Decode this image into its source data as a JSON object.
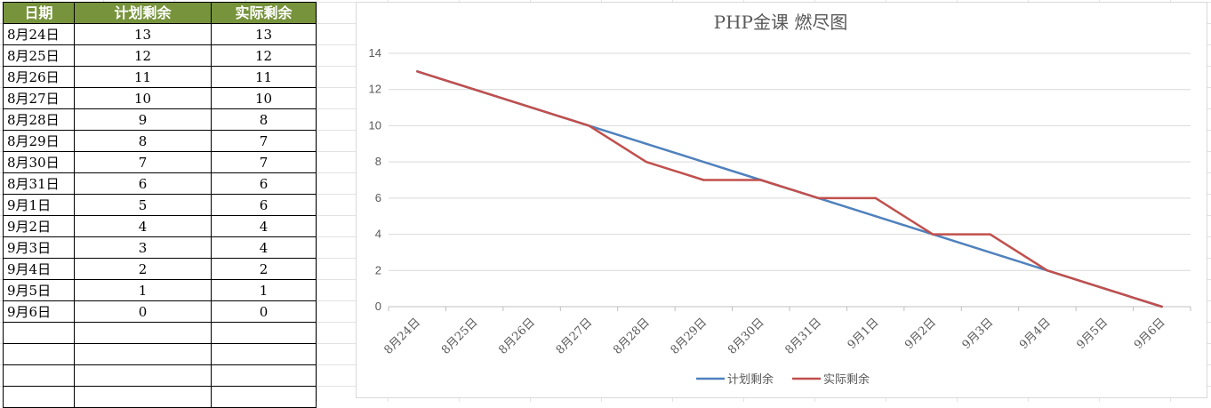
{
  "table": {
    "headers": [
      "日期",
      "计划剩余",
      "实际剩余"
    ],
    "rows": [
      [
        "8月24日",
        "13",
        "13"
      ],
      [
        "8月25日",
        "12",
        "12"
      ],
      [
        "8月26日",
        "11",
        "11"
      ],
      [
        "8月27日",
        "10",
        "10"
      ],
      [
        "8月28日",
        "9",
        "8"
      ],
      [
        "8月29日",
        "8",
        "7"
      ],
      [
        "8月30日",
        "7",
        "7"
      ],
      [
        "8月31日",
        "6",
        "6"
      ],
      [
        "9月1日",
        "5",
        "6"
      ],
      [
        "9月2日",
        "4",
        "4"
      ],
      [
        "9月3日",
        "3",
        "4"
      ],
      [
        "9月4日",
        "2",
        "2"
      ],
      [
        "9月5日",
        "1",
        "1"
      ],
      [
        "9月6日",
        "0",
        "0"
      ]
    ],
    "blank_rows": 4
  },
  "chart_data": {
    "type": "line",
    "title": "PHP金课  燃尽图",
    "categories": [
      "8月24日",
      "8月25日",
      "8月26日",
      "8月27日",
      "8月28日",
      "8月29日",
      "8月30日",
      "8月31日",
      "9月1日",
      "9月2日",
      "9月3日",
      "9月4日",
      "9月5日",
      "9月6日"
    ],
    "series": [
      {
        "name": "计划剩余",
        "color": "#4f81bd",
        "values": [
          13,
          12,
          11,
          10,
          9,
          8,
          7,
          6,
          5,
          4,
          3,
          2,
          1,
          0
        ]
      },
      {
        "name": "实际剩余",
        "color": "#c0504d",
        "values": [
          13,
          12,
          11,
          10,
          8,
          7,
          7,
          6,
          6,
          4,
          4,
          2,
          1,
          0
        ]
      }
    ],
    "yticks": [
      0,
      2,
      4,
      6,
      8,
      10,
      12,
      14
    ],
    "ylim": [
      0,
      14
    ],
    "grid": true,
    "legend_position": "bottom"
  }
}
